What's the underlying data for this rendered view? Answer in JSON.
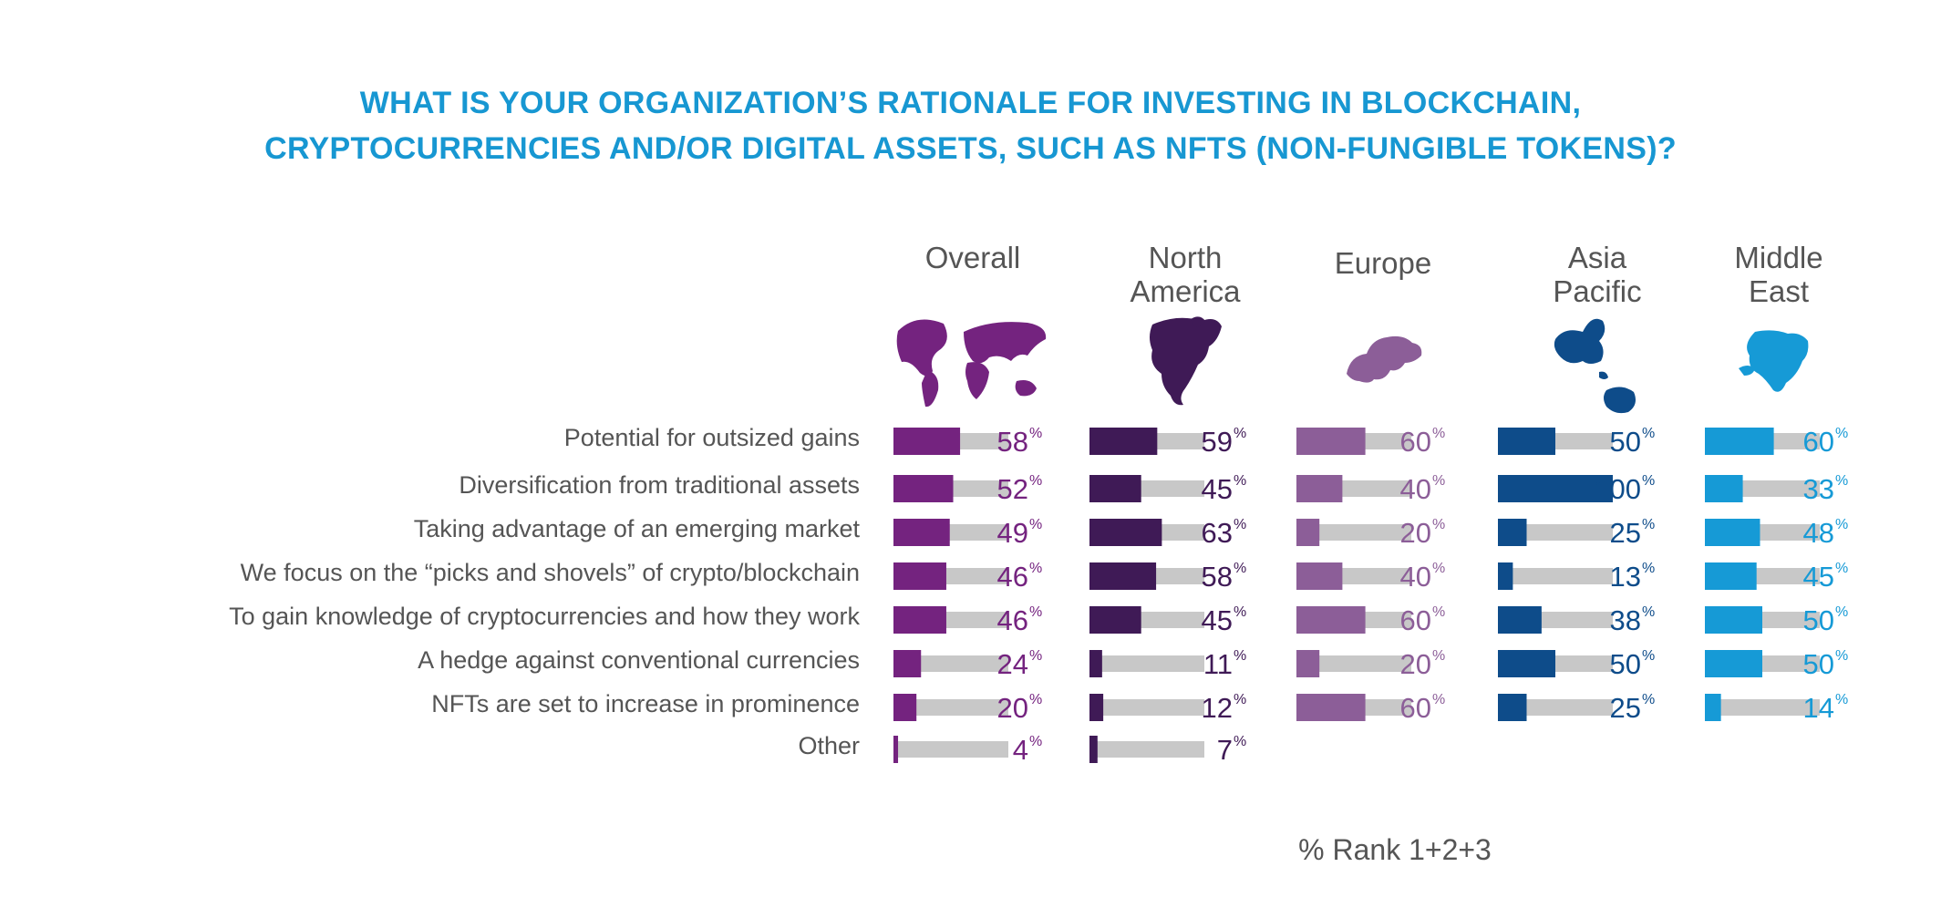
{
  "title_lines": [
    "WHAT IS YOUR ORGANIZATION’S RATIONALE FOR INVESTING IN BLOCKCHAIN,",
    "CRYPTOCURRENCIES AND/OR DIGITAL ASSETS, SUCH AS NFTS (NON-FUNGIBLE TOKENS)?"
  ],
  "footnote": "% Rank 1+2+3",
  "chart_data": {
    "type": "bar",
    "orientation": "horizontal",
    "unit_suffix": "%",
    "xlim": [
      0,
      100
    ],
    "categories": [
      "Potential for outsized gains",
      "Diversification from traditional assets",
      "Taking advantage of an emerging market",
      "We focus on the “picks and shovels” of crypto/blockchain",
      "To gain knowledge of cryptocurrencies and how they work",
      "A hedge against conventional currencies",
      "NFTs are set to increase in prominence",
      "Other"
    ],
    "series": [
      {
        "name_lines": [
          "Overall"
        ],
        "map_icon": "world-map-icon",
        "color": "#74237f",
        "values": [
          58,
          52,
          49,
          46,
          46,
          24,
          20,
          4
        ]
      },
      {
        "name_lines": [
          "North",
          "America"
        ],
        "map_icon": "north-america-map-icon",
        "color": "#3f1a56",
        "values": [
          59,
          45,
          63,
          58,
          45,
          11,
          12,
          7
        ]
      },
      {
        "name_lines": [
          "Europe"
        ],
        "map_icon": "europe-map-icon",
        "color": "#8c5e98",
        "values": [
          60,
          40,
          20,
          40,
          60,
          20,
          60,
          null
        ]
      },
      {
        "name_lines": [
          "Asia",
          "Pacific"
        ],
        "map_icon": "asia-pacific-map-icon",
        "color": "#0e4c8a",
        "values": [
          50,
          100,
          25,
          13,
          38,
          50,
          25,
          null
        ]
      },
      {
        "name_lines": [
          "Middle",
          "East"
        ],
        "map_icon": "middle-east-map-icon",
        "color": "#169ad6",
        "values": [
          60,
          33,
          48,
          45,
          50,
          50,
          14,
          null
        ]
      }
    ],
    "track_color": "#c8c8c8"
  }
}
